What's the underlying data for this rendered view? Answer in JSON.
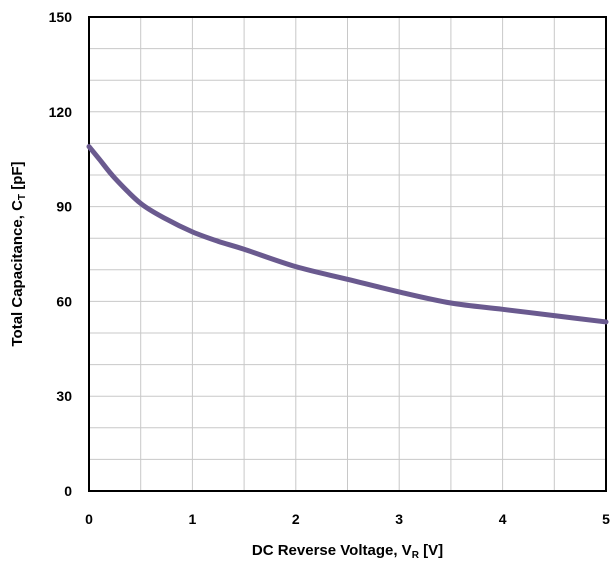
{
  "chart_data": {
    "type": "line",
    "title": "",
    "xlabel": {
      "main": "DC Reverse Voltage, V",
      "sub": "R",
      "unit": " [V]"
    },
    "ylabel": {
      "main": "Total Capacitance, C",
      "sub": "T",
      "unit": " [pF]"
    },
    "xlim": [
      0,
      5
    ],
    "ylim": [
      0,
      150
    ],
    "x_ticks": [
      0,
      1,
      2,
      3,
      4,
      5
    ],
    "y_ticks": [
      0,
      30,
      60,
      90,
      120,
      150
    ],
    "x_minor_step": 0.5,
    "y_minor_step": 10,
    "grid": true,
    "line_color": "#6a5a8f",
    "series": [
      {
        "x": [
          0,
          0.1,
          0.25,
          0.5,
          0.75,
          1.0,
          1.25,
          1.5,
          2.0,
          2.5,
          3.0,
          3.5,
          4.0,
          4.5,
          5.0
        ],
        "values": [
          109,
          105,
          99,
          91,
          86,
          82,
          79,
          76.5,
          71,
          67,
          63,
          59.5,
          57.5,
          55.5,
          53.5
        ]
      }
    ]
  }
}
